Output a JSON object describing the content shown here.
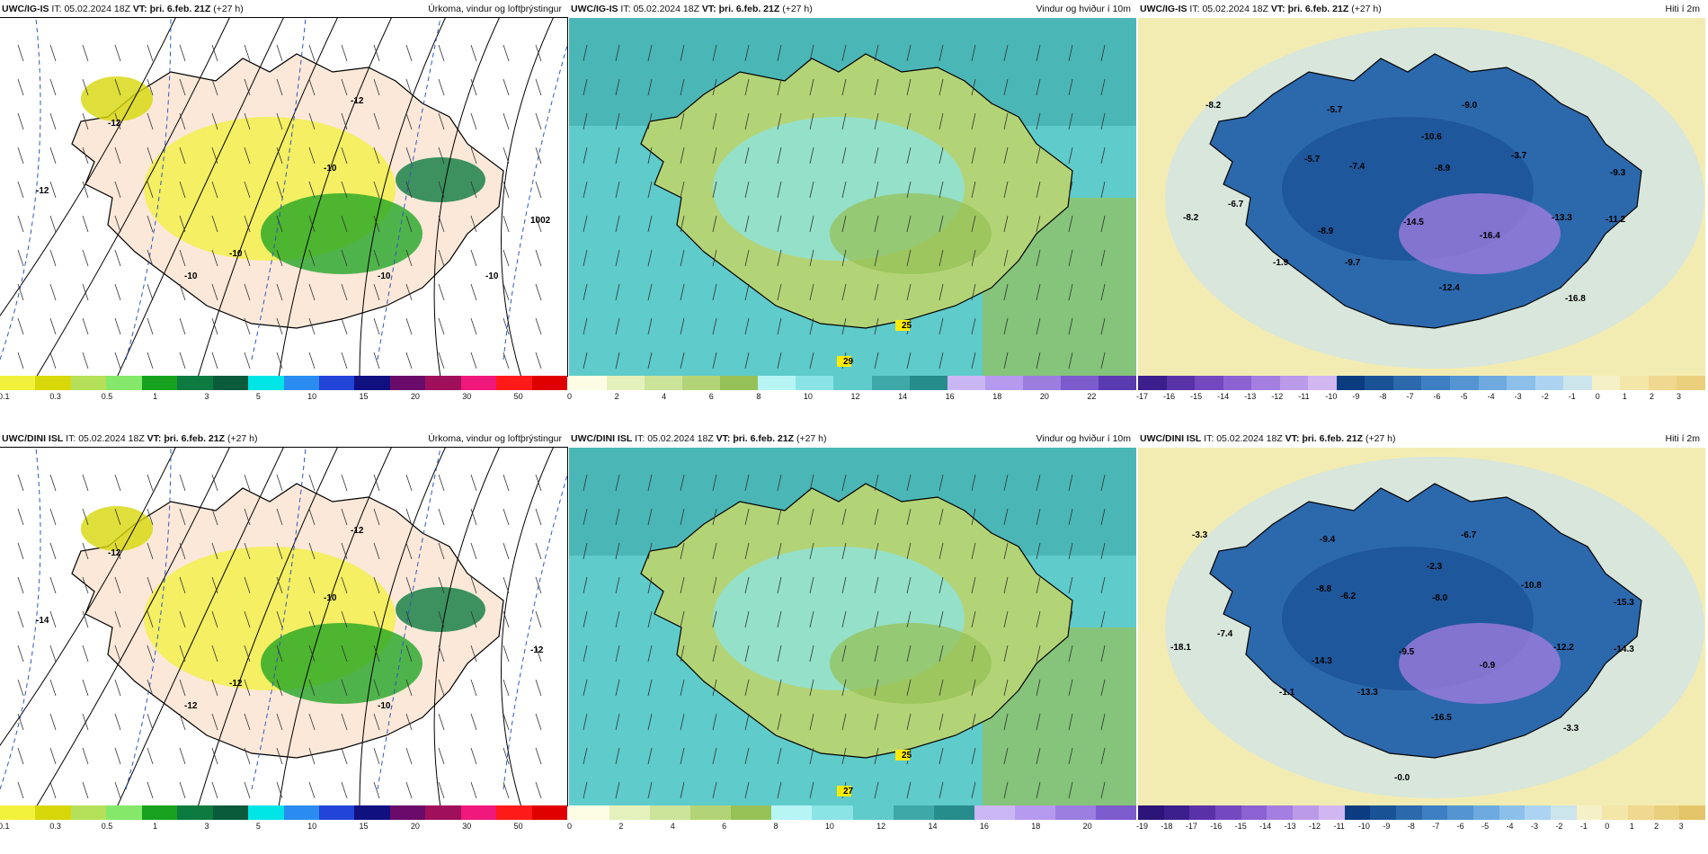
{
  "panels": [
    {
      "model": "UWC/IG-IS",
      "it_label": "IT:",
      "it": "05.02.2024 18Z",
      "vt_label": "VT:",
      "vt": "þri. 6.feb. 21Z",
      "lead": "(+27 h)",
      "title": "Úrkoma, vindur og loftþrýstingur",
      "kind": "precip",
      "colorbar": [
        "#f2f23c",
        "#d7d70a",
        "#b4e05a",
        "#86e86a",
        "#16a21e",
        "#0d7a40",
        "#0a5a3c",
        "#00e6e6",
        "#2a8cf0",
        "#2244d8",
        "#101080",
        "#6a0a6a",
        "#a0105a",
        "#f0187a",
        "#ff1a1a",
        "#e00000"
      ],
      "ticks": [
        "0.1",
        "0.3",
        "0.5",
        "1",
        "3",
        "5",
        "10",
        "15",
        "20",
        "30",
        "50"
      ],
      "labels": [
        "-12",
        "-12",
        "-10",
        "-10",
        "-10",
        "-10",
        "-12",
        "1002",
        "-10"
      ]
    },
    {
      "model": "UWC/IG-IS",
      "it_label": "IT:",
      "it": "05.02.2024 18Z",
      "vt_label": "VT:",
      "vt": "þri. 6.feb. 21Z",
      "lead": "(+27 h)",
      "title": "Vindur og hviður í 10m",
      "kind": "wind",
      "colorbar": [
        "#fdfde6",
        "#e4f1bc",
        "#cce39a",
        "#b3d476",
        "#96c157",
        "#b7f5f5",
        "#8ae4e6",
        "#5fcbcb",
        "#3ea8a8",
        "#268c8c",
        "#cbb6f5",
        "#b59af0",
        "#9b7ee0",
        "#7c5ccc",
        "#5a3ab0"
      ],
      "ticks": [
        "0",
        "2",
        "4",
        "6",
        "8",
        "10",
        "12",
        "14",
        "16",
        "18",
        "20",
        "22"
      ],
      "labels": [
        "25",
        "29"
      ]
    },
    {
      "model": "UWC/IG-IS",
      "it_label": "IT:",
      "it": "05.02.2024 18Z",
      "vt_label": "VT:",
      "vt": "þri. 6.feb. 21Z",
      "lead": "(+27 h)",
      "title": "Hiti í 2m",
      "kind": "temp",
      "colorbar": [
        "#3c1e8c",
        "#5a32a8",
        "#7448c0",
        "#8c62d2",
        "#a47ee0",
        "#bc9aea",
        "#d2b6f2",
        "#0c3c80",
        "#1a5296",
        "#2c68ac",
        "#3e7ec2",
        "#5494d2",
        "#6eaae0",
        "#8cc0ea",
        "#acd4f2",
        "#cce4ec",
        "#f6f0c8",
        "#f4e6a8",
        "#f0d890",
        "#ead07c"
      ],
      "ticks": [
        "-17",
        "-16",
        "-15",
        "-14",
        "-13",
        "-12",
        "-11",
        "-10",
        "-9",
        "-8",
        "-7",
        "-6",
        "-5",
        "-4",
        "-3",
        "-2",
        "-1",
        "0",
        "1",
        "2",
        "3"
      ],
      "labels": [
        "-8.2",
        "-5.7",
        "-9.0",
        "-10.6",
        "-5.7",
        "-7.4",
        "-8.9",
        "-9.3",
        "-3.7",
        "-6.7",
        "-14.5",
        "-13.3",
        "-11.2",
        "-8.2",
        "-8.9",
        "-16.4",
        "-1.9",
        "-9.7",
        "-12.4",
        "-16.8"
      ]
    },
    {
      "model": "UWC/DINI ISL",
      "it_label": "IT:",
      "it": "05.02.2024 18Z",
      "vt_label": "VT:",
      "vt": "þri. 6.feb. 21Z",
      "lead": "(+27 h)",
      "title": "Úrkoma, vindur og loftþrýstingur",
      "kind": "precip",
      "colorbar": [
        "#f2f23c",
        "#d7d70a",
        "#b4e05a",
        "#86e86a",
        "#16a21e",
        "#0d7a40",
        "#0a5a3c",
        "#00e6e6",
        "#2a8cf0",
        "#2244d8",
        "#101080",
        "#6a0a6a",
        "#a0105a",
        "#f0187a",
        "#ff1a1a",
        "#e00000"
      ],
      "ticks": [
        "0.1",
        "0.3",
        "0.5",
        "1",
        "3",
        "5",
        "10",
        "15",
        "20",
        "30",
        "50"
      ],
      "labels": [
        "-12",
        "-14",
        "-12",
        "-12",
        "-10",
        "-10",
        "-12",
        "-12"
      ]
    },
    {
      "model": "UWC/DINI ISL",
      "it_label": "IT:",
      "it": "05.02.2024 18Z",
      "vt_label": "VT:",
      "vt": "þri. 6.feb. 21Z",
      "lead": "(+27 h)",
      "title": "Vindur og hviður í 10m",
      "kind": "wind",
      "colorbar": [
        "#fdfde6",
        "#e4f1bc",
        "#cce39a",
        "#b3d476",
        "#96c157",
        "#b7f5f5",
        "#8ae4e6",
        "#5fcbcb",
        "#3ea8a8",
        "#268c8c",
        "#cbb6f5",
        "#b59af0",
        "#9b7ee0",
        "#7c5ccc"
      ],
      "ticks": [
        "0",
        "2",
        "4",
        "6",
        "8",
        "10",
        "12",
        "14",
        "16",
        "18",
        "20"
      ],
      "labels": [
        "25",
        "27"
      ]
    },
    {
      "model": "UWC/DINI ISL",
      "it_label": "IT:",
      "it": "05.02.2024 18Z",
      "vt_label": "VT:",
      "vt": "þri. 6.feb. 21Z",
      "lead": "(+27 h)",
      "title": "Hiti í 2m",
      "kind": "temp",
      "colorbar": [
        "#2c1478",
        "#3c1e8c",
        "#5a32a8",
        "#7448c0",
        "#8c62d2",
        "#a47ee0",
        "#bc9aea",
        "#d2b6f2",
        "#0c3c80",
        "#1a5296",
        "#2c68ac",
        "#3e7ec2",
        "#5494d2",
        "#6eaae0",
        "#8cc0ea",
        "#acd4f2",
        "#cce4ec",
        "#f6f0c8",
        "#f4e6a8",
        "#f0d890",
        "#ead07c",
        "#e4c468"
      ],
      "ticks": [
        "-19",
        "-18",
        "-17",
        "-16",
        "-15",
        "-14",
        "-13",
        "-12",
        "-11",
        "-10",
        "-9",
        "-8",
        "-7",
        "-6",
        "-5",
        "-4",
        "-3",
        "-2",
        "-1",
        "0",
        "1",
        "2",
        "3"
      ],
      "labels": [
        "-3.3",
        "-9.4",
        "-6.7",
        "-2.3",
        "-8.8",
        "-6.2",
        "-8.0",
        "-15.3",
        "-10.8",
        "-7.4",
        "-9.5",
        "-12.2",
        "-14.3",
        "-18.1",
        "-14.3",
        "-0.9",
        "-1.1",
        "-13.3",
        "-16.5",
        "-3.3",
        "-0.0"
      ]
    }
  ]
}
